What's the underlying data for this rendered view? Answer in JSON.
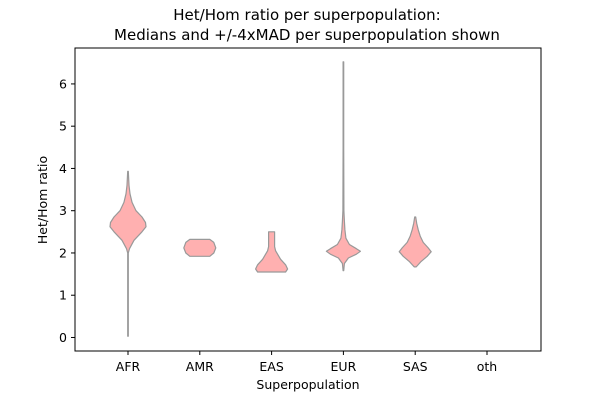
{
  "chart_data": {
    "type": "violin",
    "title": "Het/Hom ratio per superpopulation:",
    "subtitle": "Medians and +/-4xMAD per superpopulation shown",
    "xlabel": "Superpopulation",
    "ylabel": "Het/Hom ratio",
    "categories": [
      "AFR",
      "AMR",
      "EAS",
      "EUR",
      "SAS",
      "oth"
    ],
    "yticks": [
      0,
      1,
      2,
      3,
      4,
      5,
      6
    ],
    "ylim": [
      -0.32,
      6.85
    ],
    "grid": false,
    "fill_color": "#ffb0b0",
    "edge_color": "#999999",
    "violins": [
      {
        "category": "AFR",
        "min": 0.03,
        "max": 3.93,
        "profile": [
          [
            0.03,
            0.3
          ],
          [
            2.0,
            0.3
          ],
          [
            2.1,
            1.5
          ],
          [
            2.3,
            6
          ],
          [
            2.5,
            14
          ],
          [
            2.62,
            18
          ],
          [
            2.72,
            17.5
          ],
          [
            2.85,
            14
          ],
          [
            3.0,
            8
          ],
          [
            3.2,
            4
          ],
          [
            3.4,
            2
          ],
          [
            3.6,
            1
          ],
          [
            3.93,
            0.3
          ]
        ]
      },
      {
        "category": "AMR",
        "min": 1.92,
        "max": 2.32,
        "profile": [
          [
            1.92,
            10
          ],
          [
            2.0,
            14
          ],
          [
            2.12,
            16
          ],
          [
            2.25,
            14
          ],
          [
            2.32,
            10
          ]
        ]
      },
      {
        "category": "EAS",
        "min": 1.55,
        "max": 2.5,
        "profile": [
          [
            1.55,
            14
          ],
          [
            1.62,
            16
          ],
          [
            1.72,
            14
          ],
          [
            1.85,
            9
          ],
          [
            1.97,
            6
          ],
          [
            2.05,
            4
          ],
          [
            2.15,
            3
          ],
          [
            2.3,
            3
          ],
          [
            2.5,
            3
          ]
        ]
      },
      {
        "category": "EUR",
        "min": 1.58,
        "max": 6.52,
        "profile": [
          [
            1.58,
            0.3
          ],
          [
            1.75,
            1
          ],
          [
            1.88,
            5
          ],
          [
            1.97,
            13
          ],
          [
            2.04,
            17
          ],
          [
            2.1,
            13
          ],
          [
            2.2,
            6
          ],
          [
            2.35,
            2.5
          ],
          [
            2.55,
            1.5
          ],
          [
            2.75,
            1
          ],
          [
            3.0,
            0.5
          ],
          [
            4.5,
            0.3
          ],
          [
            6.52,
            0.3
          ]
        ]
      },
      {
        "category": "SAS",
        "min": 1.67,
        "max": 2.85,
        "profile": [
          [
            1.67,
            1
          ],
          [
            1.8,
            6
          ],
          [
            1.92,
            12
          ],
          [
            2.03,
            16
          ],
          [
            2.12,
            13
          ],
          [
            2.25,
            8
          ],
          [
            2.4,
            5
          ],
          [
            2.55,
            3
          ],
          [
            2.7,
            1.5
          ],
          [
            2.85,
            0.5
          ]
        ]
      }
    ]
  }
}
